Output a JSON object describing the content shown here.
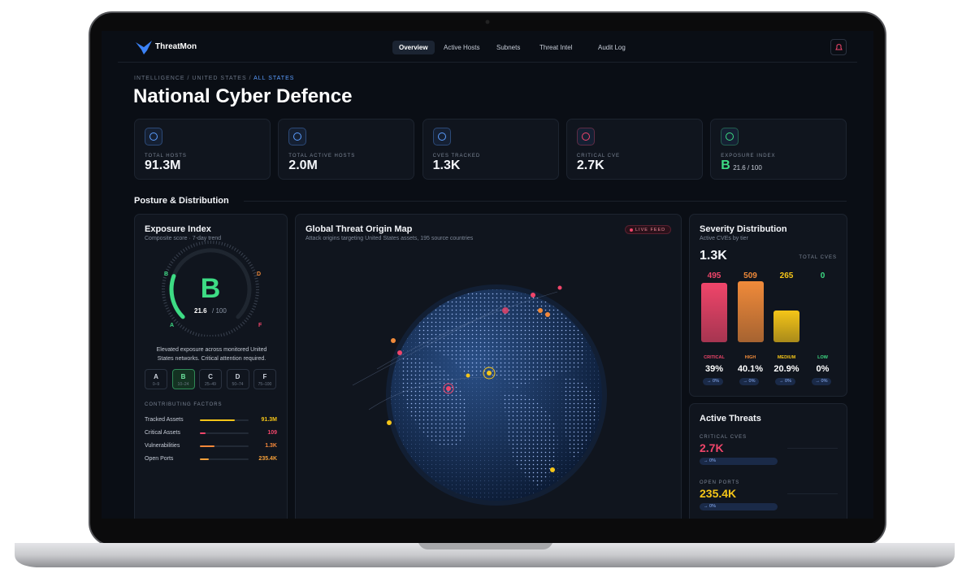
{
  "nav": {
    "brand": "ThreatMon",
    "tabs": [
      "Overview",
      "Active Hosts",
      "Subnets",
      "Threat Intel",
      "Audit Log"
    ]
  },
  "breadcrumb": [
    "INTELLIGENCE",
    "UNITED STATES",
    "ALL STATES"
  ],
  "title": "National Cyber Defence",
  "kpis": [
    {
      "label": "TOTAL HOSTS",
      "value": "91.3M"
    },
    {
      "label": "TOTAL ACTIVE HOSTS",
      "value": "2.0M"
    },
    {
      "label": "CVES TRACKED",
      "value": "1.3K"
    },
    {
      "label": "CRITICAL CVE",
      "value": "2.7K"
    },
    {
      "label": "EXPOSURE INDEX",
      "grade": "B",
      "value": "21.6 / 100"
    }
  ],
  "section": "Posture & Distribution",
  "exposure": {
    "title": "Exposure Index",
    "subtitle": "Composite score · 7-day trend",
    "grade": "B",
    "score": "21.6",
    "max": "/ 100",
    "gauge_labels": [
      "B",
      "D",
      "A",
      "F"
    ],
    "note": "Elevated exposure across monitored United States networks. Critical attention required.",
    "grades": [
      {
        "grade": "A",
        "range": "0–9"
      },
      {
        "grade": "B",
        "range": "10–24"
      },
      {
        "grade": "C",
        "range": "25–49"
      },
      {
        "grade": "D",
        "range": "50–74"
      },
      {
        "grade": "F",
        "range": "75–100"
      }
    ],
    "factors_title": "CONTRIBUTING FACTORS",
    "factors": [
      {
        "name": "Tracked Assets",
        "value": "91.3M",
        "color": "#f5c518"
      },
      {
        "name": "Critical Assets",
        "value": "109",
        "color": "#f0456a"
      },
      {
        "name": "Vulnerabilities",
        "value": "1.3K",
        "color": "#f5883a"
      },
      {
        "name": "Open Ports",
        "value": "235.4K",
        "color": "#f5a03a"
      }
    ]
  },
  "map": {
    "title": "Global Threat Origin Map",
    "subtitle": "Attack origins targeting United States assets, 195 source countries",
    "badge": "LIVE FEED"
  },
  "severity": {
    "title": "Severity Distribution",
    "subtitle": "Active CVEs by tier",
    "total": "1.3K",
    "total_label": "TOTAL CVES",
    "tiers": [
      {
        "name": "CRITICAL",
        "count": 495,
        "share": "39%",
        "delta": "→ 0%",
        "color": "#f0456a"
      },
      {
        "name": "HIGH",
        "count": 509,
        "share": "40.1%",
        "delta": "→ 0%",
        "color": "#f08a3a"
      },
      {
        "name": "MEDIUM",
        "count": 265,
        "share": "20.9%",
        "delta": "→ 0%",
        "color": "#f5c518"
      },
      {
        "name": "LOW",
        "count": 0,
        "share": "0%",
        "delta": "→ 0%",
        "color": "#3ddc84"
      }
    ]
  },
  "threats": {
    "title": "Active Threats",
    "items": [
      {
        "label": "CRITICAL CVES",
        "value": "2.7K",
        "delta": "→ 0%",
        "color": "#f0456a"
      },
      {
        "label": "OPEN PORTS",
        "value": "235.4K",
        "delta": "→ 0%",
        "color": "#f5c518"
      }
    ]
  }
}
